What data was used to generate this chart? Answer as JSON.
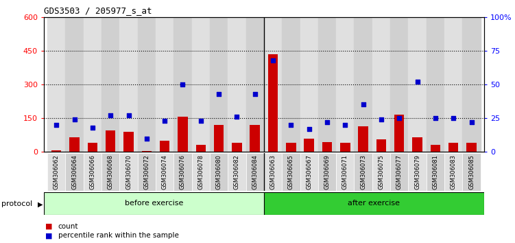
{
  "title": "GDS3503 / 205977_s_at",
  "samples": [
    "GSM306062",
    "GSM306064",
    "GSM306066",
    "GSM306068",
    "GSM306070",
    "GSM306072",
    "GSM306074",
    "GSM306076",
    "GSM306078",
    "GSM306080",
    "GSM306082",
    "GSM306084",
    "GSM306063",
    "GSM306065",
    "GSM306067",
    "GSM306069",
    "GSM306071",
    "GSM306073",
    "GSM306075",
    "GSM306077",
    "GSM306079",
    "GSM306081",
    "GSM306083",
    "GSM306085"
  ],
  "counts": [
    8,
    65,
    40,
    95,
    90,
    5,
    50,
    155,
    30,
    120,
    40,
    120,
    435,
    40,
    60,
    45,
    40,
    115,
    55,
    165,
    65,
    30,
    40,
    40
  ],
  "percentiles": [
    20,
    24,
    18,
    27,
    27,
    10,
    23,
    50,
    23,
    43,
    26,
    43,
    68,
    20,
    17,
    22,
    20,
    35,
    24,
    25,
    52,
    25,
    25,
    22
  ],
  "before_exercise_count": 12,
  "after_exercise_count": 12,
  "bar_color": "#cc0000",
  "dot_color": "#0000cc",
  "before_color": "#ccffcc",
  "after_color": "#33cc33",
  "left_ylim": [
    0,
    600
  ],
  "right_ylim": [
    0,
    100
  ],
  "left_yticks": [
    0,
    150,
    300,
    450,
    600
  ],
  "right_yticks": [
    0,
    25,
    50,
    75,
    100
  ],
  "right_yticklabels": [
    "0",
    "25",
    "50",
    "75",
    "100%"
  ],
  "hlines": [
    150,
    300,
    450
  ],
  "legend_count": "count",
  "legend_pct": "percentile rank within the sample",
  "protocol_label": "protocol",
  "before_label": "before exercise",
  "after_label": "after exercise",
  "bg_color": "#ffffff",
  "col_light": "#e0e0e0",
  "col_dark": "#d0d0d0"
}
